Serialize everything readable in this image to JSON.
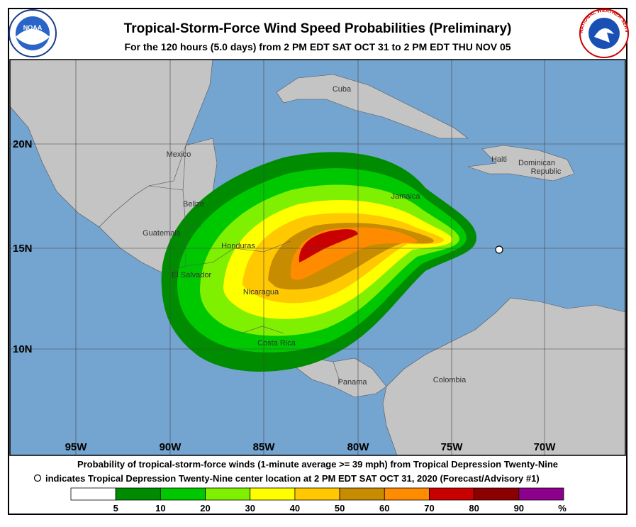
{
  "header": {
    "title": "Tropical-Storm-Force Wind Speed Probabilities (Preliminary)",
    "subtitle": "For the 120 hours (5.0 days) from 2 PM EDT SAT OCT 31 to 2 PM EDT THU NOV 05",
    "noaa_logo": "NOAA",
    "nws_logo": "NATIONAL WEATHER SERVICE"
  },
  "map": {
    "lon_labels": [
      "95W",
      "90W",
      "85W",
      "80W",
      "75W",
      "70W"
    ],
    "lat_labels": [
      "20N",
      "15N",
      "10N"
    ],
    "places": [
      "Cuba",
      "Mexico",
      "Haiti",
      "Dominican",
      "Republic",
      "Jamaica",
      "Belize",
      "Guatemala",
      "Honduras",
      "El Salvador",
      "Nicaragua",
      "Costa Rica",
      "Panama",
      "Colombia"
    ]
  },
  "footer": {
    "line1": "Probability of tropical-storm-force winds (1-minute average >= 39 mph) from Tropical Depression Twenty-Nine",
    "line2": "indicates Tropical Depression Twenty-Nine center location at 2 PM EDT SAT OCT 31, 2020 (Forecast/Advisory #1)"
  },
  "legend": {
    "colors": [
      "#ffffff",
      "#008c00",
      "#00c800",
      "#7ff000",
      "#ffff00",
      "#ffc800",
      "#c88c00",
      "#ff8c00",
      "#c80000",
      "#8c0000",
      "#8c008c"
    ],
    "thresholds": [
      5,
      10,
      20,
      30,
      40,
      50,
      60,
      70,
      80,
      90
    ],
    "unit": "%"
  }
}
